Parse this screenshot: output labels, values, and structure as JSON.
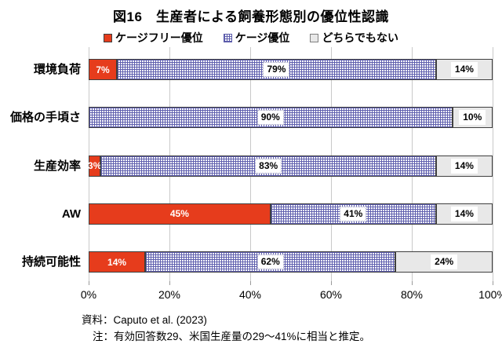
{
  "notes": {
    "source": "資料：Caputo et al. (2023)",
    "note": "注：有効回答数29、米国生産量の29～41%に相当と推定。"
  },
  "chart_data": {
    "type": "bar",
    "orientation": "horizontal",
    "stacked": true,
    "title": "図16　生産者による飼養形態別の優位性認識",
    "categories": [
      "環境負荷",
      "価格の手頃さ",
      "生産効率",
      "AW",
      "持続可能性"
    ],
    "series": [
      {
        "name": "ケージフリー優位",
        "style": "red",
        "color": "#e63c1c",
        "values": [
          7,
          0,
          3,
          45,
          14
        ]
      },
      {
        "name": "ケージ優位",
        "style": "blue",
        "color": "#5f5fae",
        "values": [
          79,
          90,
          83,
          41,
          62
        ]
      },
      {
        "name": "どちらでもない",
        "style": "gray",
        "color": "#e8e8e8",
        "values": [
          14,
          10,
          14,
          14,
          24
        ]
      }
    ],
    "data_label_format": "{value}%",
    "x_ticks": [
      "0%",
      "20%",
      "40%",
      "60%",
      "80%",
      "100%"
    ],
    "xlim": [
      0,
      100
    ],
    "grid": true,
    "legend_position": "top"
  }
}
